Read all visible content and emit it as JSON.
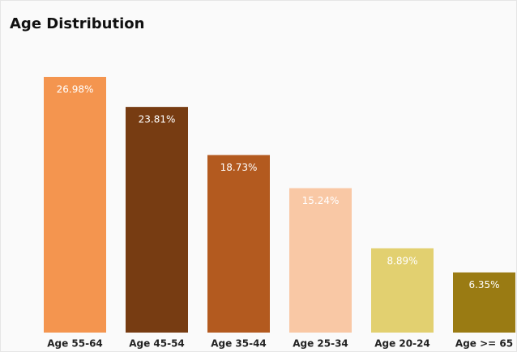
{
  "chart_data": {
    "type": "bar",
    "title": "Age Distribution",
    "categories": [
      "Age 55-64",
      "Age 45-54",
      "Age 35-44",
      "Age 25-34",
      "Age 20-24",
      "Age >= 65"
    ],
    "values": [
      26.98,
      23.81,
      18.73,
      15.24,
      8.89,
      6.35
    ],
    "value_labels": [
      "26.98%",
      "23.81%",
      "18.73%",
      "15.24%",
      "8.89%",
      "6.35%"
    ],
    "colors": [
      "#f4954f",
      "#773c12",
      "#b35a1f",
      "#f9c8a5",
      "#e2d070",
      "#9a7b13"
    ]
  }
}
